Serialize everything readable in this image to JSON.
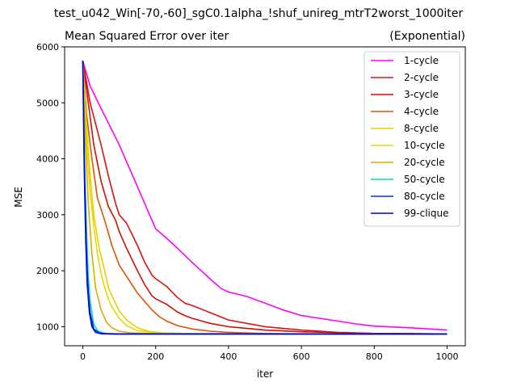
{
  "chart_data": {
    "type": "line",
    "suptitle": "test_u042_Win[-70,-60]_sgC0.1alpha_!shuf_unireg_mtrT2worst_1000iter",
    "title_left": "Mean Squared Error over iter",
    "title_right": "(Exponential)",
    "xlabel": "iter",
    "ylabel": "MSE",
    "xlim": [
      -50,
      1050
    ],
    "ylim": [
      660,
      6000
    ],
    "xticks": [
      0,
      200,
      400,
      600,
      800,
      1000
    ],
    "yticks": [
      1000,
      2000,
      3000,
      4000,
      5000,
      6000
    ],
    "grid": false,
    "legend_position": "top-right",
    "series": [
      {
        "name": "1-cycle",
        "color": "#ff00ff",
        "x": [
          0,
          20,
          50,
          100,
          150,
          180,
          200,
          230,
          260,
          300,
          350,
          380,
          400,
          420,
          450,
          500,
          550,
          600,
          650,
          700,
          750,
          800,
          900,
          1000
        ],
        "y": [
          5750,
          5300,
          4900,
          4250,
          3500,
          3050,
          2750,
          2580,
          2400,
          2150,
          1850,
          1680,
          1620,
          1590,
          1540,
          1420,
          1300,
          1200,
          1150,
          1100,
          1050,
          1010,
          980,
          940
        ]
      },
      {
        "name": "2-cycle",
        "color": "#dd1111",
        "x": [
          0,
          20,
          50,
          70,
          90,
          100,
          120,
          150,
          170,
          190,
          200,
          230,
          260,
          280,
          300,
          350,
          400,
          450,
          500,
          600,
          700,
          800,
          1000
        ],
        "y": [
          5750,
          5000,
          4250,
          3700,
          3200,
          3000,
          2850,
          2450,
          2150,
          1920,
          1860,
          1720,
          1520,
          1420,
          1380,
          1250,
          1120,
          1060,
          1000,
          940,
          900,
          880,
          870
        ]
      },
      {
        "name": "3-cycle",
        "color": "#cc1100",
        "x": [
          0,
          15,
          30,
          50,
          70,
          90,
          100,
          120,
          150,
          170,
          190,
          200,
          230,
          260,
          280,
          300,
          350,
          400,
          500,
          600,
          800,
          1000
        ],
        "y": [
          5750,
          5000,
          4250,
          3600,
          3150,
          2900,
          2700,
          2400,
          2000,
          1750,
          1550,
          1500,
          1400,
          1260,
          1200,
          1150,
          1060,
          1000,
          940,
          910,
          880,
          870
        ]
      },
      {
        "name": "4-cycle",
        "color": "#dd5500",
        "x": [
          0,
          10,
          25,
          40,
          60,
          80,
          100,
          120,
          150,
          170,
          190,
          210,
          230,
          260,
          300,
          350,
          400,
          500,
          600,
          800,
          1000
        ],
        "y": [
          5750,
          4800,
          4000,
          3300,
          2900,
          2450,
          2100,
          1900,
          1600,
          1450,
          1300,
          1180,
          1100,
          1020,
          960,
          920,
          900,
          880,
          870,
          870,
          870
        ]
      },
      {
        "name": "8-cycle",
        "color": "#eecc00",
        "x": [
          0,
          10,
          20,
          30,
          45,
          60,
          70,
          80,
          100,
          120,
          150,
          180,
          220,
          300,
          400,
          600,
          1000
        ],
        "y": [
          5750,
          4600,
          3700,
          3000,
          2400,
          2000,
          1700,
          1550,
          1280,
          1120,
          980,
          920,
          890,
          875,
          870,
          870,
          870
        ]
      },
      {
        "name": "10-cycle",
        "color": "#dddd00",
        "x": [
          0,
          10,
          20,
          30,
          40,
          50,
          60,
          70,
          80,
          100,
          120,
          150,
          200,
          300,
          1000
        ],
        "y": [
          5750,
          4300,
          3400,
          2800,
          2300,
          1950,
          1700,
          1500,
          1350,
          1150,
          1020,
          930,
          890,
          875,
          870
        ]
      },
      {
        "name": "20-cycle",
        "color": "#ddaa00",
        "x": [
          0,
          8,
          15,
          25,
          35,
          50,
          65,
          80,
          100,
          130,
          200,
          1000
        ],
        "y": [
          5750,
          4200,
          3200,
          2300,
          1700,
          1300,
          1080,
          980,
          920,
          890,
          875,
          870
        ]
      },
      {
        "name": "50-cycle",
        "color": "#00ddbb",
        "x": [
          0,
          5,
          10,
          15,
          20,
          30,
          40,
          55,
          70,
          100,
          1000
        ],
        "y": [
          5750,
          3900,
          2700,
          1900,
          1450,
          1050,
          930,
          890,
          878,
          872,
          870
        ]
      },
      {
        "name": "80-cycle",
        "color": "#0033cc",
        "x": [
          0,
          5,
          10,
          15,
          20,
          30,
          45,
          60,
          100,
          1000
        ],
        "y": [
          5750,
          3600,
          2300,
          1600,
          1250,
          960,
          890,
          875,
          870,
          870
        ]
      },
      {
        "name": "99-clique",
        "color": "#0000dd",
        "x": [
          0,
          4,
          8,
          12,
          18,
          25,
          35,
          50,
          80,
          1000
        ],
        "y": [
          5750,
          3800,
          2500,
          1750,
          1250,
          1000,
          900,
          875,
          870,
          870
        ]
      }
    ]
  }
}
